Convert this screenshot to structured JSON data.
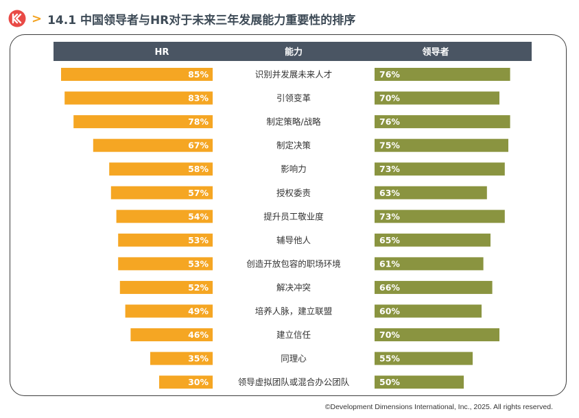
{
  "title": {
    "chevron": ">",
    "text": "14.1 中国领导者与HR对于未来三年发展能力重要性的排序"
  },
  "colors": {
    "hr": "#f5a623",
    "leader": "#8a9440",
    "header_bg": "#4a5563",
    "logo": "#e94a46",
    "accent": "#f3a21f"
  },
  "chart_data": {
    "type": "bar",
    "title": "14.1 中国领导者与HR对于未来三年发展能力重要性的排序",
    "headers": {
      "hr": "HR",
      "category": "能力",
      "leader": "领导者"
    },
    "categories": [
      "识别并发展未来人才",
      "引领变革",
      "制定策略/战略",
      "制定决策",
      "影响力",
      "授权委责",
      "提升员工敬业度",
      "辅导他人",
      "创造开放包容的职场环境",
      "解决冲突",
      "培养人脉，建立联盟",
      "建立信任",
      "同理心",
      "领导虚拟团队或混合办公团队"
    ],
    "series": [
      {
        "name": "HR",
        "values": [
          85,
          83,
          78,
          67,
          58,
          57,
          54,
          53,
          53,
          52,
          49,
          46,
          35,
          30
        ]
      },
      {
        "name": "领导者",
        "values": [
          76,
          70,
          76,
          75,
          73,
          63,
          73,
          65,
          61,
          66,
          60,
          70,
          55,
          50
        ]
      }
    ],
    "unit": "%",
    "xlim": [
      0,
      100
    ]
  },
  "copyright": "©Development Dimensions International, Inc., 2025. All rights reserved."
}
